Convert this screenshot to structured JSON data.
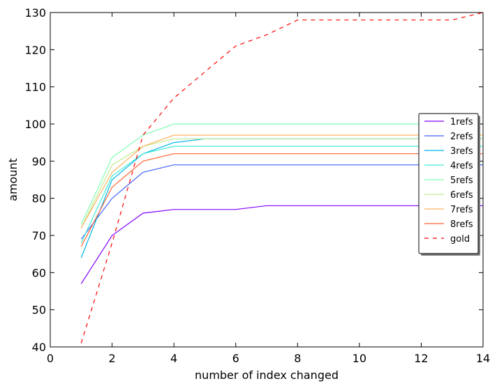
{
  "chart_data": {
    "type": "line",
    "xlabel": "number of index changed",
    "ylabel": "amount",
    "xlim": [
      0,
      14
    ],
    "ylim": [
      40,
      130
    ],
    "x_ticks": [
      0,
      2,
      4,
      6,
      8,
      10,
      12,
      14
    ],
    "y_ticks": [
      40,
      50,
      60,
      70,
      80,
      90,
      100,
      110,
      120,
      130
    ],
    "grid": false,
    "legend_position": "right",
    "series": [
      {
        "name": "1refs",
        "color": "#8000ff",
        "dash": "solid",
        "x": [
          1,
          2,
          3,
          4,
          5,
          6,
          7,
          8,
          9,
          10,
          11,
          12,
          13,
          14
        ],
        "y": [
          57,
          70,
          76,
          77,
          77,
          77,
          78,
          78,
          78,
          78,
          78,
          78,
          78,
          78
        ]
      },
      {
        "name": "2refs",
        "color": "#4062fa",
        "dash": "solid",
        "x": [
          1,
          2,
          3,
          4,
          5,
          6,
          7,
          8,
          9,
          10,
          11,
          12,
          13,
          14
        ],
        "y": [
          69,
          80,
          87,
          89,
          89,
          89,
          89,
          89,
          89,
          89,
          89,
          89,
          89,
          89
        ]
      },
      {
        "name": "3refs",
        "color": "#00b5eb",
        "dash": "solid",
        "x": [
          1,
          2,
          3,
          4,
          5,
          6,
          7,
          8,
          9,
          10,
          11,
          12,
          13,
          14
        ],
        "y": [
          64,
          85,
          92,
          95,
          96,
          96,
          96,
          96,
          96,
          96,
          96,
          96,
          96,
          96
        ]
      },
      {
        "name": "4refs",
        "color": "#40ecd4",
        "dash": "solid",
        "x": [
          1,
          2,
          3,
          4,
          5,
          6,
          7,
          8,
          9,
          10,
          11,
          12,
          13,
          14
        ],
        "y": [
          68,
          86,
          92,
          94,
          94,
          94,
          94,
          94,
          94,
          94,
          94,
          94,
          94,
          94
        ]
      },
      {
        "name": "5refs",
        "color": "#80ffb4",
        "dash": "solid",
        "x": [
          1,
          2,
          3,
          4,
          5,
          6,
          7,
          8,
          9,
          10,
          11,
          12,
          13,
          14
        ],
        "y": [
          73,
          91,
          97,
          100,
          100,
          100,
          100,
          100,
          100,
          100,
          100,
          100,
          100,
          100
        ]
      },
      {
        "name": "6refs",
        "color": "#c0eb8d",
        "dash": "solid",
        "x": [
          1,
          2,
          3,
          4,
          5,
          6,
          7,
          8,
          9,
          10,
          11,
          12,
          13,
          14
        ],
        "y": [
          72,
          89,
          94,
          96,
          96,
          96,
          96,
          96,
          96,
          96,
          96,
          96,
          96,
          96
        ]
      },
      {
        "name": "7refs",
        "color": "#ffb360",
        "dash": "solid",
        "x": [
          1,
          2,
          3,
          4,
          5,
          6,
          7,
          8,
          9,
          10,
          11,
          12,
          13,
          14
        ],
        "y": [
          72,
          87,
          94,
          97,
          97,
          97,
          97,
          97,
          97,
          97,
          97,
          97,
          97,
          97
        ]
      },
      {
        "name": "8refs",
        "color": "#ff6230",
        "dash": "solid",
        "x": [
          1,
          2,
          3,
          4,
          5,
          6,
          7,
          8,
          9,
          10,
          11,
          12,
          13,
          14
        ],
        "y": [
          67,
          83,
          90,
          92,
          92,
          92,
          92,
          92,
          92,
          92,
          92,
          92,
          92,
          92
        ]
      },
      {
        "name": "gold",
        "color": "#ff0000",
        "dash": "dashed",
        "x": [
          1,
          2,
          3,
          4,
          5,
          6,
          7,
          8,
          9,
          10,
          11,
          12,
          13,
          14
        ],
        "y": [
          41,
          68,
          97,
          107,
          114,
          121,
          124,
          128,
          128,
          128,
          128,
          128,
          128,
          130
        ]
      }
    ]
  }
}
